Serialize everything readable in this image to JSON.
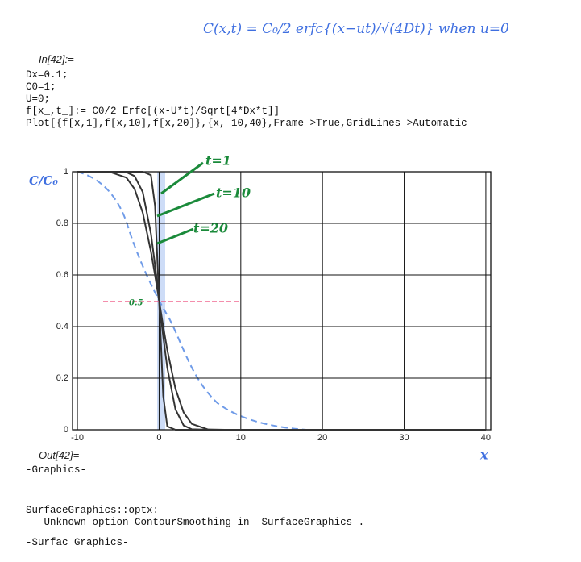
{
  "equation": "C(x,t) = C₀/2 erfc{(x−ut)/√(4Dt)}   when u=0",
  "input": {
    "label": "In[42]:=",
    "lines": [
      "Dx=0.1;",
      "C0=1;",
      "U=0;",
      "f[x_,t_]:= C0/2 Erfc[(x-U*t)/Sqrt[4*Dx*t]]",
      "Plot[{f[x,1],f[x,10],f[x,20]},{x,-10,40},Frame->True,GridLines->Automatic"
    ]
  },
  "output": {
    "label": "Out[42]=",
    "text": "-Graphics-"
  },
  "messages": [
    "SurfaceGraphics::optx:",
    "   Unknown option ContourSmoothing in -SurfaceGraphics-.",
    "-Surfac Graphics-"
  ],
  "chart_data": {
    "type": "line",
    "y_label": "C/C₀",
    "x_label": "x",
    "annotations": [
      "t=1",
      "t=10",
      "t=20",
      "0.5"
    ],
    "x": [
      -10,
      -8,
      -6,
      -4,
      -3,
      -2,
      -1,
      -0.5,
      0,
      0.5,
      1,
      2,
      3,
      4,
      6,
      8,
      10,
      15,
      20,
      30,
      40
    ],
    "series": [
      {
        "name": "f[x,1]",
        "color": "#333333",
        "values": [
          1,
          1,
          1,
          1,
          1,
          1,
          0.987,
          0.868,
          0.5,
          0.132,
          0.013,
          0,
          0,
          0,
          0,
          0,
          0,
          0,
          0,
          0,
          0
        ]
      },
      {
        "name": "f[x,10]",
        "color": "#333333",
        "values": [
          1,
          1,
          1,
          0.998,
          0.983,
          0.921,
          0.76,
          0.638,
          0.5,
          0.362,
          0.24,
          0.079,
          0.017,
          0.002,
          0,
          0,
          0,
          0,
          0,
          0,
          0
        ]
      },
      {
        "name": "f[x,20]",
        "color": "#333333",
        "values": [
          1,
          1,
          0.999,
          0.977,
          0.933,
          0.841,
          0.691,
          0.599,
          0.5,
          0.401,
          0.309,
          0.159,
          0.067,
          0.023,
          0.001,
          0,
          0,
          0,
          0,
          0,
          0
        ]
      }
    ],
    "xlim": [
      -10.6,
      40.6
    ],
    "ylim": [
      0,
      1
    ],
    "xticks": [
      -10,
      0,
      10,
      20,
      30,
      40
    ],
    "yticks": [
      0,
      0.2,
      0.4,
      0.6,
      0.8,
      1
    ],
    "grid": true
  }
}
